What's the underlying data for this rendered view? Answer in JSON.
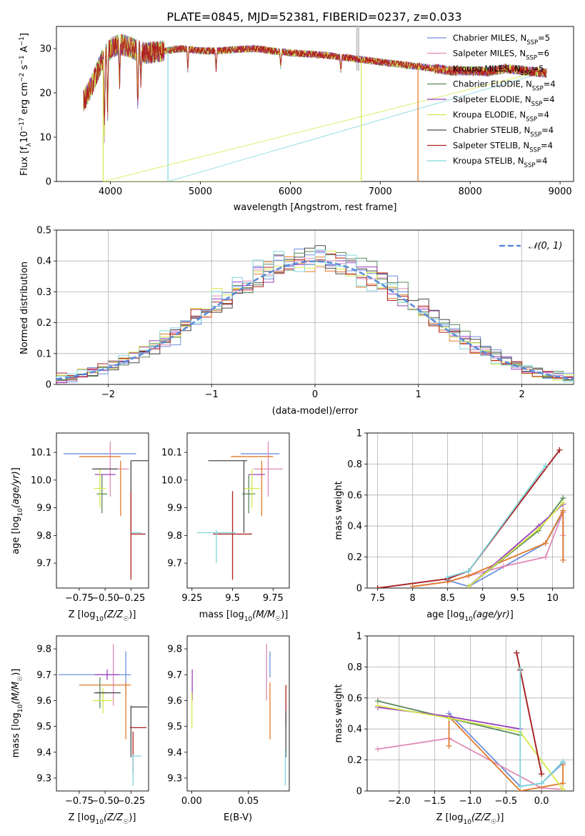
{
  "figure": {
    "title": "PLATE=0845, MJD=52381, FIBERID=0237, z=0.033"
  },
  "series": [
    {
      "name": "Chabrier MILES, N_SSP=5",
      "label": "Chabrier MILES, N",
      "sub": "SSP",
      "eq": "=5",
      "color": "#6f8fdc"
    },
    {
      "name": "Salpeter MILES, N_SSP=6",
      "label": "Salpeter MILES, N",
      "sub": "SSP",
      "eq": "=6",
      "color": "#e08bb8"
    },
    {
      "name": "Kroupa MILES, N_SSP=5",
      "label": "Kroupa MILES, N",
      "sub": "SSP",
      "eq": "=5",
      "color": "#e07a2a"
    },
    {
      "name": "Chabrier ELODIE, N_SSP=4",
      "label": "Chabrier ELODIE, N",
      "sub": "SSP",
      "eq": "=4",
      "color": "#5a8a5a"
    },
    {
      "name": "Salpeter ELODIE, N_SSP=4",
      "label": "Salpeter ELODIE, N",
      "sub": "SSP",
      "eq": "=4",
      "color": "#9b3fc0"
    },
    {
      "name": "Kroupa ELODIE, N_SSP=4",
      "label": "Kroupa ELODIE, N",
      "sub": "SSP",
      "eq": "=4",
      "color": "#d4e84a"
    },
    {
      "name": "Chabrier STELIB, N_SSP=4",
      "label": "Chabrier STELIB, N",
      "sub": "SSP",
      "eq": "=4",
      "color": "#4a4a4a"
    },
    {
      "name": "Salpeter STELIB, N_SSP=4",
      "label": "Salpeter STELIB, N",
      "sub": "SSP",
      "eq": "=4",
      "color": "#b02020"
    },
    {
      "name": "Kroupa STELIB, N_SSP=4",
      "label": "Kroupa STELIB, N",
      "sub": "SSP",
      "eq": "=4",
      "color": "#7fd6dc"
    }
  ],
  "chart_data": [
    {
      "id": "spectrum",
      "type": "line",
      "xlabel": "wavelength [Angstrom, rest frame]",
      "ylabel": "Flux [f_λ 10^-17 erg cm^-2 s^-1 A^-1]",
      "xlim": [
        3400,
        9150
      ],
      "ylim": [
        0,
        35
      ],
      "xticks": [
        4000,
        5000,
        6000,
        7000,
        8000,
        9000
      ],
      "yticks": [
        0,
        10,
        20,
        30
      ],
      "x_range": [
        3700,
        8850
      ],
      "continuum": {
        "x": [
          3700,
          3800,
          3900,
          4000,
          4100,
          4200,
          4300,
          4400,
          4600,
          4800,
          5000,
          5200,
          5400,
          5600,
          5800,
          6000,
          6200,
          6400,
          6600,
          6800,
          7000,
          7200,
          7400,
          7600,
          7800,
          8000,
          8200,
          8400,
          8600,
          8850
        ],
        "y": [
          18,
          22,
          27,
          30,
          31,
          30.5,
          29.5,
          29,
          29.5,
          30,
          29.5,
          29.5,
          29.8,
          30,
          29.5,
          29,
          28.8,
          28.5,
          28,
          27.5,
          27,
          26.5,
          26,
          25.5,
          25,
          25,
          24.8,
          25.5,
          25,
          24.5
        ]
      },
      "features": [
        {
          "x": 3934,
          "y": 11
        },
        {
          "x": 3969,
          "y": 15
        },
        {
          "x": 4102,
          "y": 22
        },
        {
          "x": 4304,
          "y": 17
        },
        {
          "x": 4340,
          "y": 23
        },
        {
          "x": 4861,
          "y": 25
        },
        {
          "x": 5175,
          "y": 25
        },
        {
          "x": 5893,
          "y": 26
        },
        {
          "x": 6563,
          "y": 25
        }
      ],
      "dropouts": [
        {
          "x": 3920,
          "y": 0,
          "series": 5
        },
        {
          "x": 4640,
          "y": 0,
          "series": 8
        },
        {
          "x": 6790,
          "y": 0,
          "series": 5
        },
        {
          "x": 7420,
          "y": 0,
          "series": 2
        }
      ],
      "grey_spikes": [
        6740,
        6760
      ],
      "legend": "top-right"
    },
    {
      "id": "residuals",
      "type": "histogram",
      "xlabel": "(data-model)/error",
      "ylabel": "Normed distribution",
      "xlim": [
        -2.5,
        2.5
      ],
      "ylim": [
        0,
        0.5
      ],
      "xticks": [
        -2,
        -1,
        0,
        1,
        2
      ],
      "yticks": [
        0,
        0.1,
        0.2,
        0.3,
        0.4,
        0.5
      ],
      "bin_width": 0.1,
      "grid": true,
      "reference": {
        "label": "𝒩(0, 1)",
        "type": "normal",
        "mu": 0,
        "sigma": 1,
        "color": "#5b8bd9"
      },
      "legend": "top-right"
    },
    {
      "id": "age_vs_Z",
      "type": "errorbar",
      "xlabel": "Z [log10(Z/Z☉)]",
      "ylabel": "age [log10(age/yr)]",
      "xlim": [
        -0.97,
        -0.08
      ],
      "ylim": [
        9.61,
        10.17
      ],
      "xticks": [
        -0.75,
        -0.5,
        -0.25
      ],
      "xticklabels": [
        "−0.75",
        "−0.50",
        "−0.25"
      ],
      "yticks": [
        9.7,
        9.8,
        9.9,
        10.0,
        10.1
      ],
      "points": [
        {
          "s": 0,
          "x": -0.55,
          "xerr": 0.35,
          "y": 10.095,
          "yerr": 0
        },
        {
          "s": 1,
          "x": -0.45,
          "xerr": 0.18,
          "y": 10.04,
          "yerr": 0.1
        },
        {
          "s": 2,
          "x": -0.55,
          "xerr": 0.2,
          "y": 10.085,
          "yerr": 0.0
        },
        {
          "s": 2,
          "x": -0.35,
          "xerr": 0.0,
          "y": 9.97,
          "yerr": 0.1
        },
        {
          "s": 3,
          "x": -0.53,
          "xerr": 0.05,
          "y": 9.95,
          "yerr": 0.07
        },
        {
          "s": 4,
          "x": -0.5,
          "xerr": 0.1,
          "y": 10.02,
          "yerr": 0.0
        },
        {
          "s": 5,
          "x": -0.55,
          "xerr": 0.06,
          "y": 9.97,
          "yerr": 0.07
        },
        {
          "s": 6,
          "x": -0.5,
          "xerr": 0.12,
          "y": 10.04,
          "yerr": 0.0
        },
        {
          "s": 6,
          "x": -0.15,
          "xerr": 0.1,
          "y": 10.07,
          "yerr": 0.0
        },
        {
          "s": 6,
          "x": -0.25,
          "xerr": 0.0,
          "y": 9.94,
          "yerr": 0.13
        },
        {
          "s": 7,
          "x": -0.25,
          "xerr": 0.0,
          "y": 9.8,
          "yerr": 0.16
        },
        {
          "s": 7,
          "x": -0.18,
          "xerr": 0.07,
          "y": 9.805,
          "yerr": 0.0
        },
        {
          "s": 8,
          "x": -0.2,
          "xerr": 0.05,
          "y": 9.81,
          "yerr": 0.0
        }
      ]
    },
    {
      "id": "age_vs_mass",
      "type": "errorbar",
      "xlabel": "mass [log10(M/M☉)]",
      "ylabel": "",
      "xlim": [
        9.22,
        9.85
      ],
      "ylim": [
        9.61,
        10.17
      ],
      "xticks": [
        9.25,
        9.5,
        9.75
      ],
      "yticks": [
        9.7,
        9.8,
        9.9,
        10.0,
        10.1
      ],
      "points": [
        {
          "s": 0,
          "x": 9.67,
          "xerr": 0.12,
          "y": 10.095,
          "yerr": 0
        },
        {
          "s": 1,
          "x": 9.72,
          "xerr": 0.09,
          "y": 10.04,
          "yerr": 0.1
        },
        {
          "s": 2,
          "x": 9.62,
          "xerr": 0.13,
          "y": 10.085,
          "yerr": 0
        },
        {
          "s": 2,
          "x": 9.68,
          "xerr": 0.0,
          "y": 9.97,
          "yerr": 0.1
        },
        {
          "s": 3,
          "x": 9.6,
          "xerr": 0.04,
          "y": 9.95,
          "yerr": 0.07
        },
        {
          "s": 4,
          "x": 9.65,
          "xerr": 0.05,
          "y": 10.02,
          "yerr": 0.0
        },
        {
          "s": 5,
          "x": 9.62,
          "xerr": 0.05,
          "y": 9.97,
          "yerr": 0.07
        },
        {
          "s": 6,
          "x": 9.47,
          "xerr": 0.12,
          "y": 10.07,
          "yerr": 0
        },
        {
          "s": 6,
          "x": 9.57,
          "xerr": 0.0,
          "y": 9.94,
          "yerr": 0.13
        },
        {
          "s": 7,
          "x": 9.5,
          "xerr": 0.12,
          "y": 9.805,
          "yerr": 0
        },
        {
          "s": 7,
          "x": 9.5,
          "xerr": 0.0,
          "y": 9.8,
          "yerr": 0.16
        },
        {
          "s": 8,
          "x": 9.4,
          "xerr": 0.12,
          "y": 9.81,
          "yerr": 0
        },
        {
          "s": 8,
          "x": 9.4,
          "xerr": 0.0,
          "y": 9.76,
          "yerr": 0.06
        }
      ]
    },
    {
      "id": "weight_vs_age",
      "type": "line",
      "xlabel": "age [log10(age/yr)]",
      "ylabel": "mass weight",
      "xlim": [
        7.35,
        10.3
      ],
      "ylim": [
        0,
        1
      ],
      "xticks": [
        7.5,
        8.0,
        8.5,
        9.0,
        9.5,
        10.0
      ],
      "yticks": [
        0,
        0.2,
        0.4,
        0.6,
        0.8,
        1.0
      ],
      "grid": true,
      "series": [
        {
          "s": 0,
          "x": [
            8.5,
            8.8,
            9.9,
            10.15,
            10.15
          ],
          "y": [
            0.05,
            0.01,
            0.29,
            0.49,
            0.18
          ]
        },
        {
          "s": 1,
          "x": [
            8.0,
            8.5,
            9.3,
            9.9,
            10.15,
            10.15
          ],
          "y": [
            0.01,
            0.04,
            0.14,
            0.2,
            0.49,
            0.34
          ]
        },
        {
          "s": 2,
          "x": [
            8.0,
            8.5,
            8.8,
            9.9,
            10.15,
            10.15
          ],
          "y": [
            0.01,
            0.04,
            0.08,
            0.29,
            0.5,
            0.18
          ]
        },
        {
          "s": 3,
          "x": [
            8.8,
            9.8,
            10.15
          ],
          "y": [
            0.01,
            0.37,
            0.58
          ]
        },
        {
          "s": 4,
          "x": [
            8.8,
            9.8,
            10.15
          ],
          "y": [
            0.01,
            0.4,
            0.54
          ]
        },
        {
          "s": 5,
          "x": [
            8.8,
            9.8,
            10.15
          ],
          "y": [
            0.01,
            0.38,
            0.55
          ]
        },
        {
          "s": 6,
          "x": [
            7.5,
            8.5,
            8.8,
            10.1
          ],
          "y": [
            0.0,
            0.06,
            0.11,
            0.89
          ]
        },
        {
          "s": 7,
          "x": [
            7.5,
            8.5,
            8.8,
            10.1
          ],
          "y": [
            0.0,
            0.06,
            0.11,
            0.89
          ]
        },
        {
          "s": 8,
          "x": [
            8.5,
            8.8,
            9.9
          ],
          "y": [
            0.07,
            0.11,
            0.79
          ]
        }
      ]
    },
    {
      "id": "mass_vs_Z",
      "type": "errorbar",
      "xlabel": "Z [log10(Z/Z☉)]",
      "ylabel": "mass [log10(M/M☉)]",
      "xlim": [
        -0.97,
        -0.08
      ],
      "ylim": [
        9.25,
        9.85
      ],
      "xticks": [
        -0.75,
        -0.5,
        -0.25
      ],
      "xticklabels": [
        "−0.75",
        "−0.50",
        "−0.25"
      ],
      "yticks": [
        9.3,
        9.4,
        9.5,
        9.6,
        9.7,
        9.8
      ],
      "points": [
        {
          "s": 0,
          "x": -0.6,
          "xerr": 0.35,
          "y": 9.7,
          "yerr": 0
        },
        {
          "s": 0,
          "x": -0.3,
          "xerr": 0.0,
          "y": 9.7,
          "yerr": 0.09
        },
        {
          "s": 1,
          "x": -0.42,
          "xerr": 0.0,
          "y": 9.7,
          "yerr": 0.12
        },
        {
          "s": 2,
          "x": -0.5,
          "xerr": 0.25,
          "y": 9.66,
          "yerr": 0
        },
        {
          "s": 2,
          "x": -0.3,
          "xerr": 0.0,
          "y": 9.56,
          "yerr": 0.11
        },
        {
          "s": 3,
          "x": -0.55,
          "xerr": 0.06,
          "y": 9.63,
          "yerr": 0.06
        },
        {
          "s": 4,
          "x": -0.48,
          "xerr": 0.12,
          "y": 9.7,
          "yerr": 0.02
        },
        {
          "s": 5,
          "x": -0.52,
          "xerr": 0.1,
          "y": 9.6,
          "yerr": 0.05
        },
        {
          "s": 6,
          "x": -0.47,
          "xerr": 0.12,
          "y": 9.63,
          "yerr": 0.0
        },
        {
          "s": 6,
          "x": -0.17,
          "xerr": 0.08,
          "y": 9.575,
          "yerr": 0.0
        },
        {
          "s": 6,
          "x": -0.25,
          "xerr": 0.0,
          "y": 9.48,
          "yerr": 0.1
        },
        {
          "s": 7,
          "x": -0.18,
          "xerr": 0.08,
          "y": 9.495,
          "yerr": 0
        },
        {
          "s": 7,
          "x": -0.23,
          "xerr": 0.0,
          "y": 9.4,
          "yerr": 0.08
        },
        {
          "s": 8,
          "x": -0.2,
          "xerr": 0.05,
          "y": 9.385,
          "yerr": 0
        },
        {
          "s": 8,
          "x": -0.23,
          "xerr": 0.0,
          "y": 9.33,
          "yerr": 0.06
        }
      ]
    },
    {
      "id": "mass_vs_ebv",
      "type": "errorbar",
      "xlabel": "E(B-V)",
      "ylabel": "",
      "xlim": [
        -0.004,
        0.086
      ],
      "ylim": [
        9.25,
        9.85
      ],
      "xticks": [
        0.0,
        0.05
      ],
      "xticklabels": [
        "0.00",
        "0.05"
      ],
      "yticks": [
        9.3,
        9.4,
        9.5,
        9.6,
        9.7,
        9.8
      ],
      "points": [
        {
          "s": 4,
          "x": 0.0005,
          "xerr": 0,
          "y": 9.66,
          "yerr": 0.06
        },
        {
          "s": 5,
          "x": 0.0002,
          "xerr": 0,
          "y": 9.56,
          "yerr": 0.07
        },
        {
          "s": 1,
          "x": 0.066,
          "xerr": 0,
          "y": 9.71,
          "yerr": 0.11
        },
        {
          "s": 2,
          "x": 0.069,
          "xerr": 0,
          "y": 9.56,
          "yerr": 0.11
        },
        {
          "s": 0,
          "x": 0.069,
          "xerr": 0,
          "y": 9.74,
          "yerr": 0.05
        },
        {
          "s": 7,
          "x": 0.083,
          "xerr": 0,
          "y": 9.58,
          "yerr": 0.08
        },
        {
          "s": 6,
          "x": 0.083,
          "xerr": 0,
          "y": 9.47,
          "yerr": 0.09
        },
        {
          "s": 8,
          "x": 0.0825,
          "xerr": 0,
          "y": 9.34,
          "yerr": 0.07
        }
      ]
    },
    {
      "id": "weight_vs_Z",
      "type": "line",
      "xlabel": "Z [log10(Z/Z☉)]",
      "ylabel": "mass weight",
      "xlim": [
        -2.45,
        0.45
      ],
      "ylim": [
        0,
        1
      ],
      "xticks": [
        -2.0,
        -1.5,
        -1.0,
        -0.5,
        0.0
      ],
      "xticklabels": [
        "−2.0",
        "−1.5",
        "−1.0",
        "−0.5",
        "0.0"
      ],
      "yticks": [
        0,
        0.2,
        0.4,
        0.6,
        0.8,
        1.0
      ],
      "grid": true,
      "series": [
        {
          "s": 0,
          "x": [
            -1.3,
            -0.3,
            0.0,
            0.3
          ],
          "y": [
            0.5,
            0.03,
            0.05,
            0.18
          ]
        },
        {
          "s": 1,
          "x": [
            -2.3,
            -1.3,
            0.0,
            0.3
          ],
          "y": [
            0.27,
            0.34,
            0.02,
            0.01
          ]
        },
        {
          "s": 2,
          "x": [
            -1.3,
            -1.3,
            -0.3,
            0.3,
            0.3
          ],
          "y": [
            0.29,
            0.48,
            0.0,
            0.05,
            0.17
          ]
        },
        {
          "s": 3,
          "x": [
            -2.3,
            -1.3,
            -0.3
          ],
          "y": [
            0.58,
            0.47,
            0.36
          ]
        },
        {
          "s": 4,
          "x": [
            -2.3,
            -1.3,
            -0.3
          ],
          "y": [
            0.54,
            0.48,
            0.4
          ]
        },
        {
          "s": 5,
          "x": [
            -2.3,
            -1.3,
            -0.3,
            0.3
          ],
          "y": [
            0.55,
            0.47,
            0.38,
            0.01
          ]
        },
        {
          "s": 6,
          "x": [
            -0.35,
            -0.3,
            0.0
          ],
          "y": [
            0.89,
            0.78,
            0.11
          ]
        },
        {
          "s": 7,
          "x": [
            -0.35,
            -0.3,
            0.0
          ],
          "y": [
            0.89,
            0.78,
            0.11
          ]
        },
        {
          "s": 8,
          "x": [
            -0.3,
            -0.3,
            0.0,
            0.3
          ],
          "y": [
            0.79,
            0.03,
            0.05,
            0.19
          ]
        }
      ]
    }
  ]
}
